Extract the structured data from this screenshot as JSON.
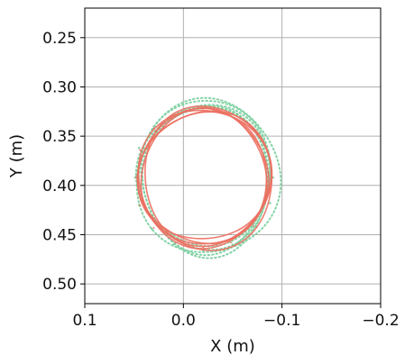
{
  "chart_data": {
    "type": "scatter",
    "title": "",
    "xlabel": "X (m)",
    "ylabel": "Y (m)",
    "xlim": [
      0.1,
      -0.2
    ],
    "ylim": [
      0.52,
      0.22
    ],
    "x_inverted": true,
    "y_inverted": true,
    "grid": true,
    "x_ticks": [
      0.1,
      0.0,
      -0.1,
      -0.2
    ],
    "x_tick_labels": [
      "0.1",
      "0.0",
      "−0.1",
      "−0.2"
    ],
    "y_ticks": [
      0.25,
      0.3,
      0.35,
      0.4,
      0.45,
      0.5
    ],
    "y_tick_labels": [
      "0.25",
      "0.30",
      "0.35",
      "0.40",
      "0.45",
      "0.50"
    ],
    "series": [
      {
        "style": "dotted",
        "color": "#7fd1a2",
        "center": [
          -0.022,
          0.392
        ],
        "radii": [
          0.069,
          0.074
        ],
        "loops": 5,
        "points": [
          [
            -0.091,
            0.392
          ],
          [
            -0.086,
            0.366
          ],
          [
            -0.071,
            0.343
          ],
          [
            -0.049,
            0.328
          ],
          [
            -0.022,
            0.32
          ],
          [
            0.005,
            0.326
          ],
          [
            0.03,
            0.34
          ],
          [
            0.045,
            0.362
          ],
          [
            0.049,
            0.392
          ],
          [
            0.045,
            0.42
          ],
          [
            0.032,
            0.444
          ],
          [
            0.01,
            0.46
          ],
          [
            -0.02,
            0.466
          ],
          [
            -0.05,
            0.46
          ],
          [
            -0.074,
            0.442
          ],
          [
            -0.088,
            0.418
          ]
        ]
      },
      {
        "style": "solid",
        "color": "#ec6f60",
        "center": [
          -0.021,
          0.392
        ],
        "radii": [
          0.068,
          0.071
        ],
        "loops": 6,
        "points": [
          [
            -0.09,
            0.392
          ],
          [
            -0.085,
            0.365
          ],
          [
            -0.07,
            0.342
          ],
          [
            -0.047,
            0.327
          ],
          [
            -0.02,
            0.322
          ],
          [
            0.006,
            0.328
          ],
          [
            0.03,
            0.342
          ],
          [
            0.044,
            0.364
          ],
          [
            0.048,
            0.392
          ],
          [
            0.044,
            0.42
          ],
          [
            0.03,
            0.443
          ],
          [
            0.008,
            0.458
          ],
          [
            -0.02,
            0.463
          ],
          [
            -0.048,
            0.458
          ],
          [
            -0.071,
            0.441
          ],
          [
            -0.086,
            0.418
          ]
        ]
      }
    ]
  },
  "colors": {
    "dotted_series": "#7fd1a2",
    "solid_series": "#ec6f60",
    "grid": "#b0b0b0",
    "axes": "#000000"
  }
}
